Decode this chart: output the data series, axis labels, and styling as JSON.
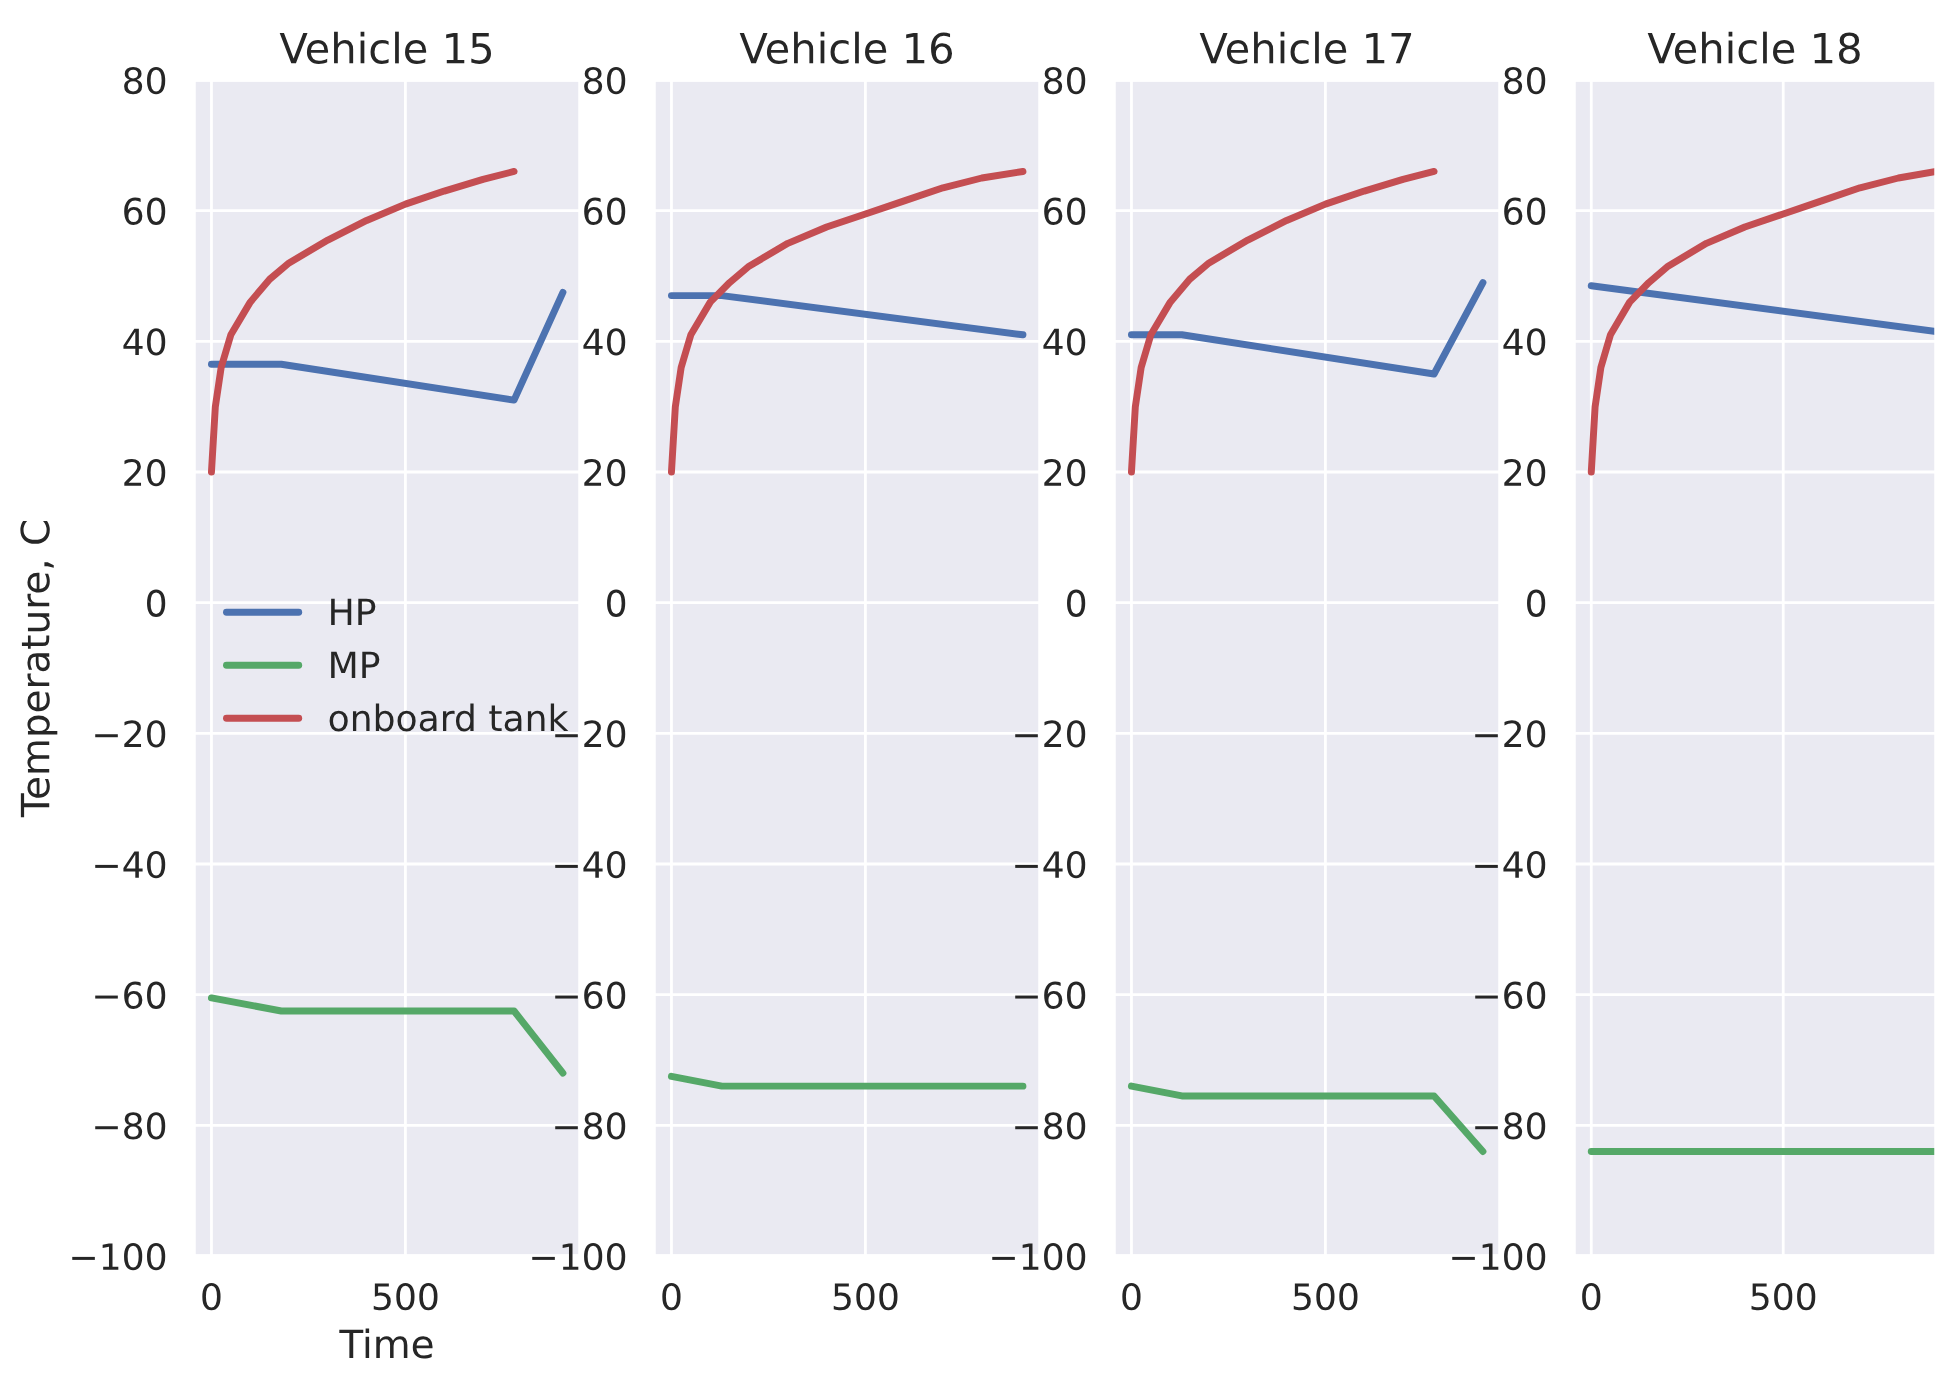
{
  "chart_data": [
    {
      "type": "line",
      "title": "Vehicle 15",
      "xlabel": "Time",
      "ylabel": "Temperature, C",
      "xlim": [
        -45,
        950
      ],
      "xticks": [
        0,
        500
      ],
      "ylim": [
        -100,
        80
      ],
      "yticks": [
        {
          "value": -100,
          "label": "−100"
        },
        {
          "value": -80,
          "label": "−80"
        },
        {
          "value": -60,
          "label": "−60"
        },
        {
          "value": -40,
          "label": "−40"
        },
        {
          "value": -20,
          "label": "−20"
        },
        0,
        20,
        40,
        60,
        80
      ],
      "grid": true,
      "legend": "center left",
      "series": [
        {
          "name": "HP",
          "color": "#4c72b0",
          "x": [
            0,
            180,
            780,
            906
          ],
          "values": [
            36.5,
            36.5,
            31,
            47.5
          ]
        },
        {
          "name": "MP",
          "color": "#55a868",
          "x": [
            0,
            180,
            780,
            906
          ],
          "values": [
            -60.5,
            -62.5,
            -62.5,
            -72
          ]
        },
        {
          "name": "onboard tank",
          "color": "#c44e52",
          "x": [
            0,
            10,
            25,
            50,
            100,
            150,
            200,
            300,
            400,
            500,
            600,
            700,
            780
          ],
          "values": [
            20,
            30,
            36,
            41,
            46,
            49.5,
            52,
            55.5,
            58.5,
            61,
            63,
            64.8,
            66
          ]
        }
      ]
    },
    {
      "type": "line",
      "title": "Vehicle 16",
      "xlim": [
        -45,
        950
      ],
      "xticks": [
        0,
        500
      ],
      "ylim": [
        -100,
        80
      ],
      "yticks": [
        {
          "value": -100,
          "label": "−100"
        },
        {
          "value": -80,
          "label": "−80"
        },
        {
          "value": -60,
          "label": "−60"
        },
        {
          "value": -40,
          "label": "−40"
        },
        {
          "value": -20,
          "label": "−20"
        },
        0,
        20,
        40,
        60,
        80
      ],
      "grid": true,
      "series": [
        {
          "color": "#4c72b0",
          "x": [
            0,
            130,
            906
          ],
          "values": [
            47,
            47,
            41
          ]
        },
        {
          "color": "#55a868",
          "x": [
            0,
            130,
            906
          ],
          "values": [
            -72.5,
            -74,
            -74
          ]
        },
        {
          "color": "#c44e52",
          "x": [
            0,
            10,
            25,
            50,
            100,
            150,
            200,
            300,
            400,
            500,
            600,
            700,
            800,
            906
          ],
          "values": [
            20,
            30,
            36,
            41,
            46,
            49,
            51.5,
            55,
            57.5,
            59.5,
            61.5,
            63.5,
            65,
            66
          ]
        }
      ]
    },
    {
      "type": "line",
      "title": "Vehicle 17",
      "xlim": [
        -45,
        950
      ],
      "xticks": [
        0,
        500
      ],
      "ylim": [
        -100,
        80
      ],
      "yticks": [
        {
          "value": -100,
          "label": "−100"
        },
        {
          "value": -80,
          "label": "−80"
        },
        {
          "value": -60,
          "label": "−60"
        },
        {
          "value": -40,
          "label": "−40"
        },
        {
          "value": -20,
          "label": "−20"
        },
        0,
        20,
        40,
        60,
        80
      ],
      "grid": true,
      "series": [
        {
          "color": "#4c72b0",
          "x": [
            0,
            130,
            780,
            906
          ],
          "values": [
            41,
            41,
            35,
            49
          ]
        },
        {
          "color": "#55a868",
          "x": [
            0,
            130,
            780,
            906
          ],
          "values": [
            -74,
            -75.5,
            -75.5,
            -84
          ]
        },
        {
          "color": "#c44e52",
          "x": [
            0,
            10,
            25,
            50,
            100,
            150,
            200,
            300,
            400,
            500,
            600,
            700,
            780
          ],
          "values": [
            20,
            30,
            36,
            41,
            46,
            49.5,
            52,
            55.5,
            58.5,
            61,
            63,
            64.8,
            66
          ]
        }
      ]
    },
    {
      "type": "line",
      "title": "Vehicle 18",
      "xlim": [
        -45,
        898
      ],
      "xticks": [
        0,
        500
      ],
      "ylim": [
        -100,
        80
      ],
      "yticks": [
        {
          "value": -100,
          "label": "−100"
        },
        {
          "value": -80,
          "label": "−80"
        },
        {
          "value": -60,
          "label": "−60"
        },
        {
          "value": -40,
          "label": "−40"
        },
        {
          "value": -20,
          "label": "−20"
        },
        0,
        20,
        40,
        60,
        80
      ],
      "grid": true,
      "series": [
        {
          "color": "#4c72b0",
          "x": [
            0,
            898
          ],
          "values": [
            48.5,
            41.5
          ]
        },
        {
          "color": "#55a868",
          "x": [
            0,
            898
          ],
          "values": [
            -84,
            -84
          ]
        },
        {
          "color": "#c44e52",
          "x": [
            0,
            10,
            25,
            50,
            100,
            150,
            200,
            300,
            400,
            500,
            600,
            700,
            800,
            898
          ],
          "values": [
            20,
            30,
            36,
            41,
            46,
            49,
            51.5,
            55,
            57.5,
            59.5,
            61.5,
            63.5,
            65,
            66
          ]
        }
      ]
    }
  ]
}
